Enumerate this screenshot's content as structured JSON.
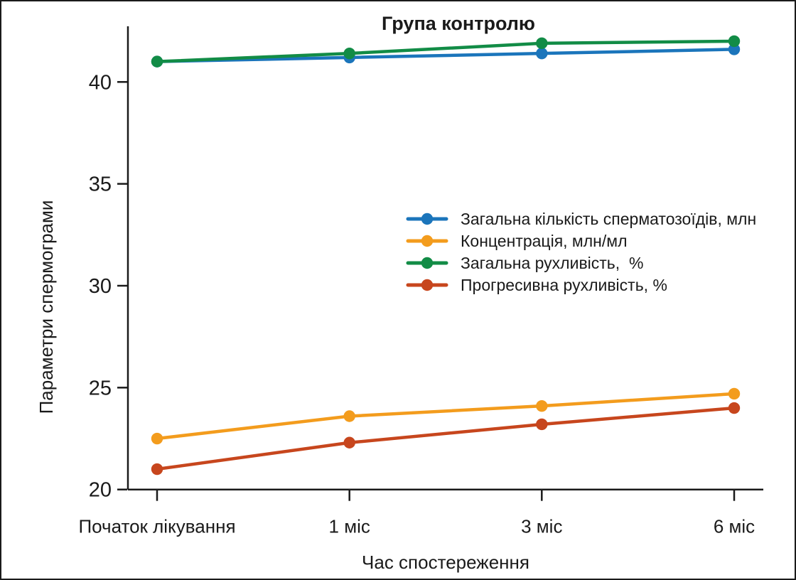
{
  "figure": {
    "background": "#ffffff",
    "border_color": "#1a1a1a",
    "axis_color": "#1a1a1a"
  },
  "chart_data": {
    "type": "line",
    "title": "Група контролю",
    "xlabel": "Час спостереження",
    "ylabel": "Параметри спермограми",
    "categories": [
      "Початок лікування",
      "1 міс",
      "3 міс",
      "6 міс"
    ],
    "yticks": [
      20,
      25,
      30,
      35,
      40
    ],
    "ylim": [
      20,
      42.8
    ],
    "grid": false,
    "legend_position": "inside-right-middle",
    "marker": "circle",
    "series": [
      {
        "name": "Загальна кількість сперматозоїдів, млн",
        "color": "#1b75bb",
        "values": [
          41.0,
          41.2,
          41.4,
          41.6
        ]
      },
      {
        "name": "Концентрація, млн/мл",
        "color": "#f39c1d",
        "values": [
          22.5,
          23.6,
          24.1,
          24.7
        ]
      },
      {
        "name": "Загальна рухливість,  %",
        "color": "#128c46",
        "values": [
          41.0,
          41.4,
          41.9,
          42.0
        ]
      },
      {
        "name": "Прогресивна рухливість, %",
        "color": "#c7461d",
        "values": [
          21.0,
          22.3,
          23.2,
          24.0
        ]
      }
    ]
  }
}
